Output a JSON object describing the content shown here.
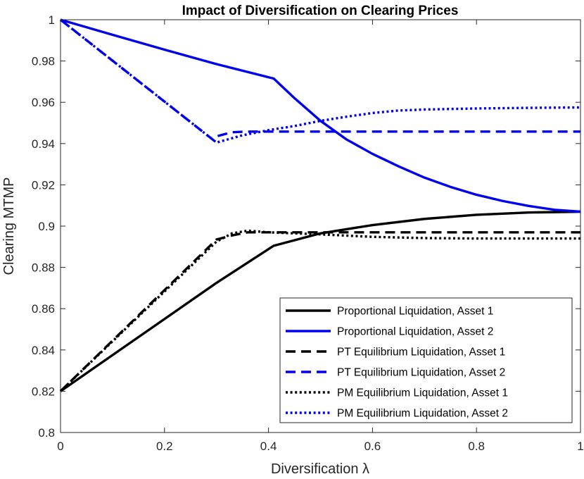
{
  "chart_data": {
    "type": "line",
    "title": "Impact of Diversification on Clearing Prices",
    "xlabel": "Diversification λ",
    "ylabel": "Clearing MTMP",
    "xlim": [
      0,
      1
    ],
    "ylim": [
      0.8,
      1
    ],
    "xticks": [
      0,
      0.2,
      0.4,
      0.6,
      0.8,
      1
    ],
    "xtick_labels": [
      "0",
      "0.2",
      "0.4",
      "0.6",
      "0.8",
      "1"
    ],
    "yticks": [
      0.8,
      0.82,
      0.84,
      0.86,
      0.88,
      0.9,
      0.92,
      0.94,
      0.96,
      0.98,
      1
    ],
    "ytick_labels": [
      "0.8",
      "0.82",
      "0.84",
      "0.86",
      "0.88",
      "0.9",
      "0.92",
      "0.94",
      "0.96",
      "0.98",
      "1"
    ],
    "grid": false,
    "legend_position": "bottom-right",
    "series": [
      {
        "name": "Proportional Liquidation, Asset 1",
        "color": "#000000",
        "style": "solid",
        "x": [
          0,
          0.1,
          0.2,
          0.3,
          0.41,
          0.5,
          0.6,
          0.7,
          0.8,
          0.9,
          1
        ],
        "y": [
          0.82,
          0.8375,
          0.855,
          0.8725,
          0.8905,
          0.8965,
          0.9005,
          0.9035,
          0.9055,
          0.9066,
          0.907
        ]
      },
      {
        "name": "Proportional Liquidation, Asset 2",
        "color": "#0000ee",
        "style": "solid",
        "x": [
          0,
          0.1,
          0.2,
          0.3,
          0.41,
          0.45,
          0.5,
          0.55,
          0.6,
          0.65,
          0.7,
          0.75,
          0.8,
          0.85,
          0.9,
          0.95,
          1
        ],
        "y": [
          1,
          0.9927,
          0.9855,
          0.9785,
          0.9715,
          0.962,
          0.951,
          0.942,
          0.935,
          0.929,
          0.9235,
          0.919,
          0.9152,
          0.9122,
          0.9098,
          0.9079,
          0.907
        ]
      },
      {
        "name": "PT Equilibrium Liquidation, Asset 1",
        "color": "#000000",
        "style": "dashed",
        "x": [
          0,
          0.3,
          0.33,
          0.36,
          0.4,
          0.5,
          0.6,
          0.7,
          0.8,
          0.9,
          1
        ],
        "y": [
          0.82,
          0.8935,
          0.8955,
          0.897,
          0.897,
          0.897,
          0.897,
          0.897,
          0.897,
          0.897,
          0.897
        ]
      },
      {
        "name": "PT Equilibrium Liquidation, Asset 2",
        "color": "#0000ee",
        "style": "dashed",
        "x": [
          0,
          0.295,
          0.3,
          0.33,
          0.36,
          0.4,
          0.5,
          0.6,
          0.7,
          0.8,
          0.9,
          1
        ],
        "y": [
          1,
          0.9415,
          0.9435,
          0.9455,
          0.9458,
          0.9458,
          0.9458,
          0.9458,
          0.9458,
          0.9458,
          0.9458,
          0.9458
        ]
      },
      {
        "name": "PM Equilibrium Liquidation, Asset 1",
        "color": "#000000",
        "style": "dotted",
        "x": [
          0,
          0.3,
          0.33,
          0.36,
          0.4,
          0.5,
          0.6,
          0.7,
          0.8,
          0.9,
          1
        ],
        "y": [
          0.82,
          0.8925,
          0.8965,
          0.8978,
          0.897,
          0.896,
          0.8948,
          0.8942,
          0.894,
          0.894,
          0.894
        ]
      },
      {
        "name": "PM Equilibrium Liquidation, Asset 2",
        "color": "#0000ee",
        "style": "dotted",
        "x": [
          0,
          0.3,
          0.35,
          0.4,
          0.45,
          0.5,
          0.55,
          0.6,
          0.65,
          0.7,
          0.8,
          0.9,
          1
        ],
        "y": [
          1,
          0.9405,
          0.944,
          0.9465,
          0.9485,
          0.951,
          0.953,
          0.9548,
          0.956,
          0.9565,
          0.957,
          0.9573,
          0.9575
        ]
      }
    ]
  }
}
